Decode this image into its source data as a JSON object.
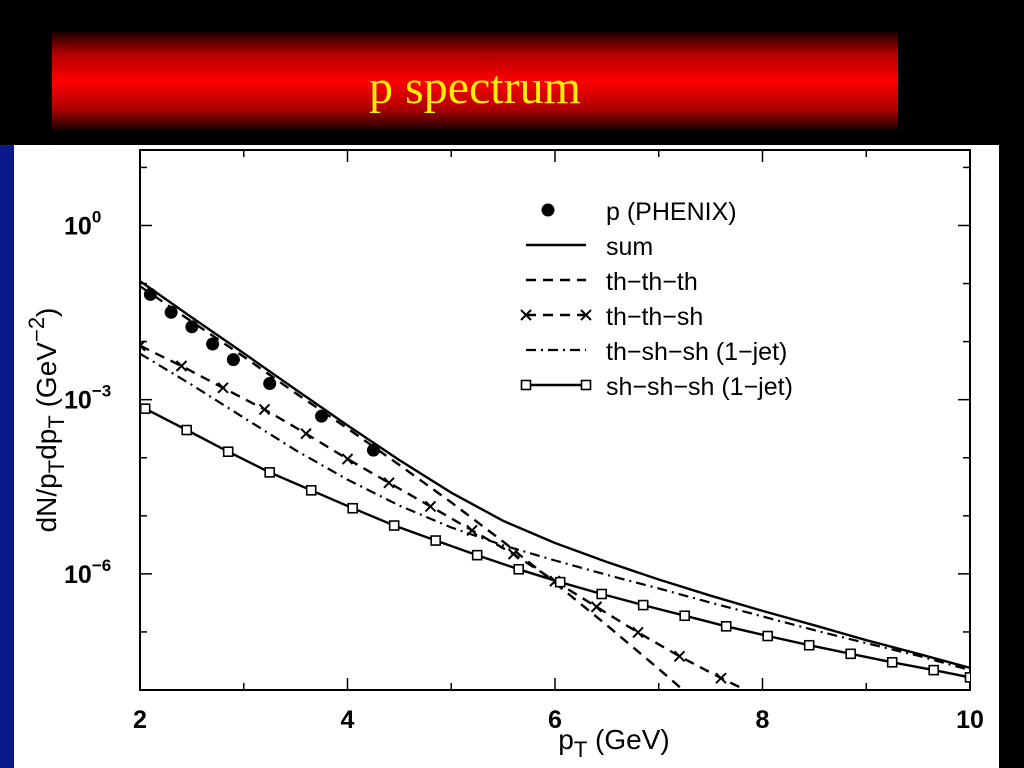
{
  "title": "p spectrum",
  "colors": {
    "banner": "#ff0000",
    "title_text": "#ffee00",
    "background": "#000000",
    "plot_bg": "#ffffff",
    "left_strip": "#0b1a8a"
  },
  "chart_data": {
    "type": "line",
    "title": "",
    "xlabel": "p_T (GeV)",
    "ylabel": "dN/p_T dp_T (GeV^-2)",
    "xlim": [
      2,
      10
    ],
    "ylim_exponent": [
      -8.0,
      1.3
    ],
    "yscale": "log",
    "x_tick_labels": [
      "2",
      "4",
      "6",
      "8",
      "10"
    ],
    "y_tick_labels": [
      {
        "base": "10",
        "exp": "0",
        "value": 1
      },
      {
        "base": "10",
        "exp": "-3",
        "value": 0.001
      },
      {
        "base": "10",
        "exp": "-6",
        "value": 1e-06
      }
    ],
    "grid": false,
    "legend_position": "top-right",
    "series": [
      {
        "name": "p (PHENIX)",
        "style": "points",
        "x": [
          2.1,
          2.3,
          2.5,
          2.7,
          2.9,
          3.25,
          3.75,
          4.25
        ],
        "y": [
          0.065,
          0.032,
          0.018,
          0.0091,
          0.0049,
          0.0019,
          0.00052,
          0.000135
        ]
      },
      {
        "name": "sum",
        "style": "solid",
        "x": [
          2,
          2.5,
          3,
          3.5,
          4,
          4.5,
          5,
          5.5,
          6,
          6.5,
          7,
          7.5,
          8,
          8.5,
          9,
          9.5,
          10
        ],
        "y": [
          0.11,
          0.026,
          0.0063,
          0.0015,
          0.00036,
          9.1e-05,
          2.5e-05,
          8.2e-06,
          3.4e-06,
          1.6e-06,
          8e-07,
          4.2e-07,
          2.3e-07,
          1.3e-07,
          7.2e-08,
          4.2e-08,
          2.4e-08
        ]
      },
      {
        "name": "th−th−th",
        "style": "dashed",
        "x": [
          2,
          2.5,
          3,
          3.5,
          4,
          4.5,
          5,
          5.5,
          6,
          6.5,
          7,
          7.5,
          7.75
        ],
        "y": [
          0.09,
          0.022,
          0.0055,
          0.0013,
          0.00032,
          7.5e-05,
          1.7e-05,
          3.6e-06,
          7e-07,
          1.3e-07,
          2.3e-08,
          3.9e-09,
          1.58e-09
        ]
      },
      {
        "name": "th−th−sh",
        "style": "dashed-cross",
        "x": [
          2,
          2.4,
          2.8,
          3.2,
          3.6,
          4.0,
          4.4,
          4.8,
          5.2,
          5.6,
          6.0,
          6.4,
          6.8,
          7.2,
          7.6,
          8.0,
          8.4,
          8.8
        ],
        "y": [
          0.0085,
          0.0038,
          0.0016,
          0.00068,
          0.00026,
          9.5e-05,
          3.7e-05,
          1.45e-05,
          5.6e-06,
          2.2e-06,
          7.5e-07,
          2.7e-07,
          9.8e-08,
          3.8e-08,
          1.6e-08,
          7.2e-09,
          3.6e-09,
          2e-09
        ]
      },
      {
        "name": "th−sh−sh (1−jet)",
        "style": "dashdot",
        "x": [
          2,
          2.5,
          3,
          3.5,
          4,
          4.5,
          5,
          5.5,
          6,
          6.5,
          7,
          7.5,
          8,
          8.5,
          9,
          9.5,
          10
        ],
        "y": [
          0.0062,
          0.0018,
          0.00049,
          0.000135,
          4.2e-05,
          1.5e-05,
          6.3e-06,
          3.1e-06,
          1.7e-06,
          9.6e-07,
          5.6e-07,
          3.2e-07,
          1.85e-07,
          1.07e-07,
          6.4e-08,
          3.9e-08,
          2.2e-08
        ]
      },
      {
        "name": "sh−sh−sh (1−jet)",
        "style": "solid-square",
        "x": [
          2.05,
          2.45,
          2.85,
          3.25,
          3.65,
          4.05,
          4.45,
          4.85,
          5.25,
          5.65,
          6.05,
          6.45,
          6.85,
          7.25,
          7.65,
          8.05,
          8.45,
          8.85,
          9.25,
          9.65,
          10.0
        ],
        "y": [
          0.0007,
          0.0003,
          0.000127,
          5.6e-05,
          2.75e-05,
          1.35e-05,
          6.8e-06,
          3.75e-06,
          2.1e-06,
          1.2e-06,
          7.2e-07,
          4.5e-07,
          2.9e-07,
          1.9e-07,
          1.25e-07,
          8.5e-08,
          5.9e-08,
          4.2e-08,
          3e-08,
          2.2e-08,
          1.65e-08
        ]
      }
    ]
  }
}
